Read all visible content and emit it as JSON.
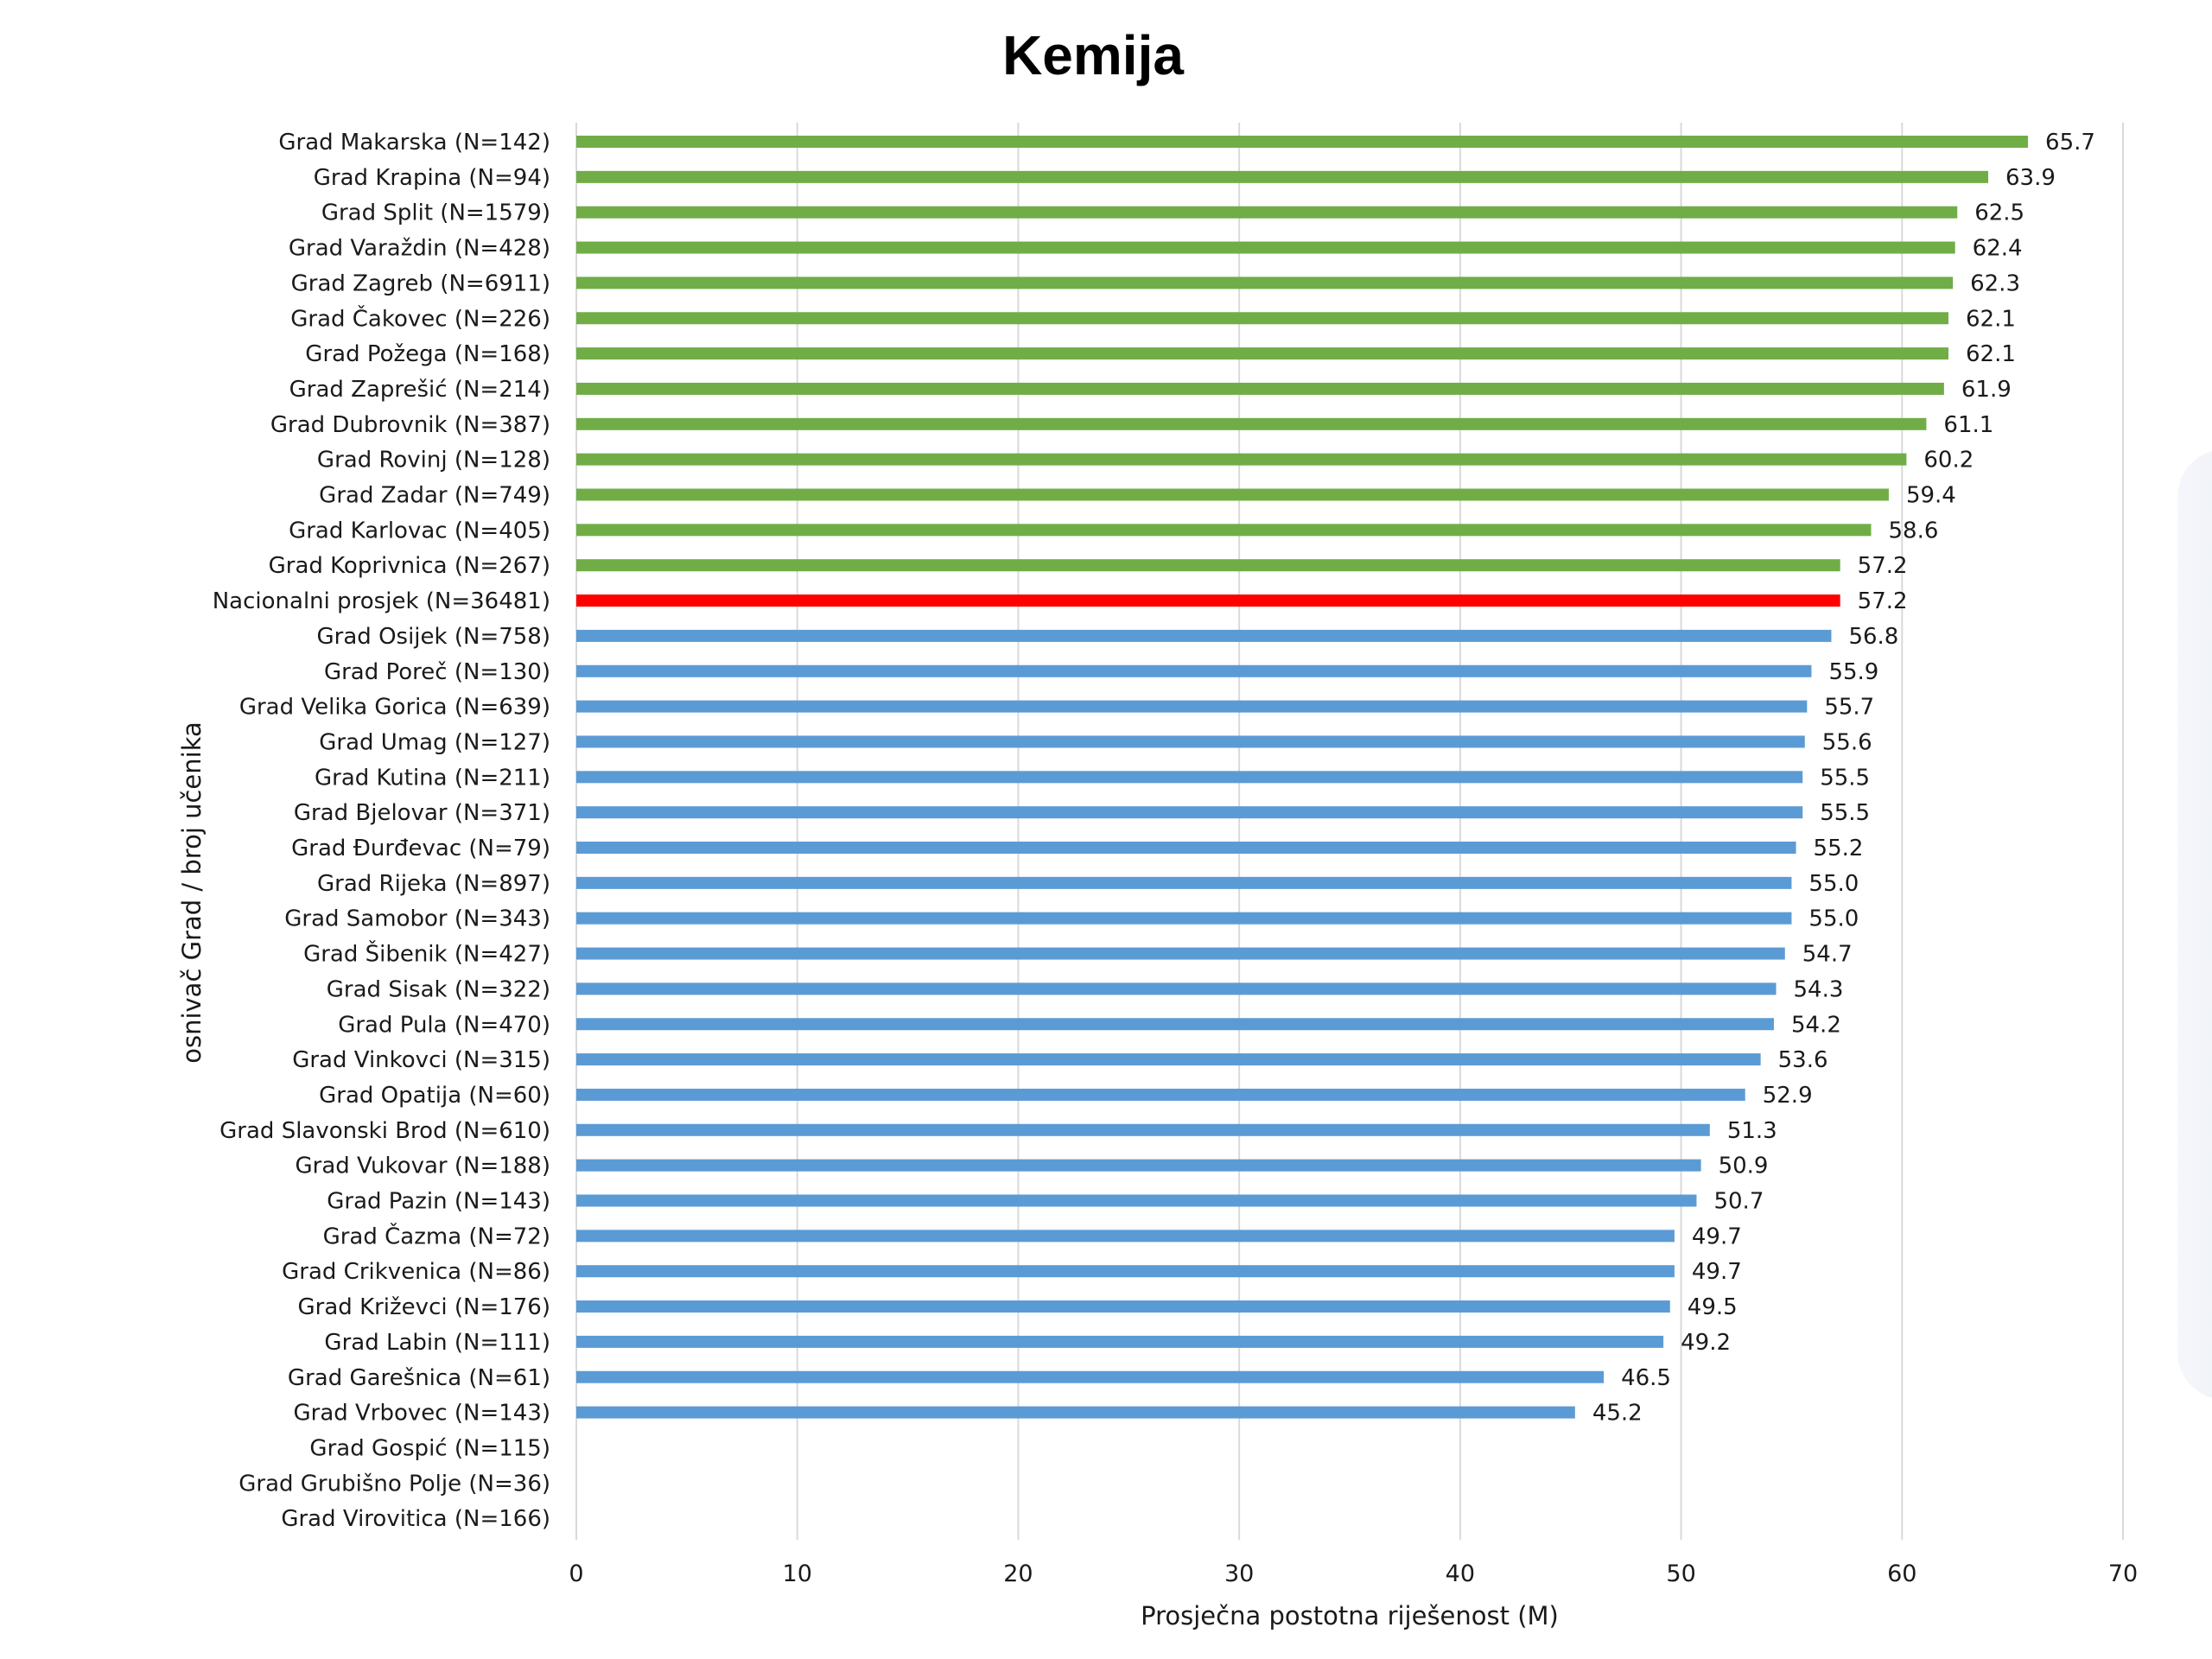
{
  "chart_data": {
    "type": "bar",
    "orientation": "horizontal",
    "title": "Kemija",
    "xlabel": "Prosječna postotna riješenost (M)",
    "ylabel": "osnivač Grad / broj učenika",
    "xlim": [
      0,
      70
    ],
    "xticks": [
      0,
      10,
      20,
      30,
      40,
      50,
      60,
      70
    ],
    "grid": "vertical",
    "colors": {
      "above": "#70ad47",
      "national": "#ff0000",
      "below": "#5b9bd5"
    },
    "categories": [
      "Grad Makarska (N=142)",
      "Grad Krapina (N=94)",
      "Grad Split (N=1579)",
      "Grad Varaždin (N=428)",
      "Grad Zagreb (N=6911)",
      "Grad Čakovec (N=226)",
      "Grad Požega (N=168)",
      "Grad Zaprešić (N=214)",
      "Grad Dubrovnik (N=387)",
      "Grad Rovinj (N=128)",
      "Grad Zadar (N=749)",
      "Grad Karlovac (N=405)",
      "Grad Koprivnica (N=267)",
      "Nacionalni prosjek (N=36481)",
      "Grad Osijek (N=758)",
      "Grad Poreč (N=130)",
      "Grad Velika Gorica (N=639)",
      "Grad Umag (N=127)",
      "Grad Kutina (N=211)",
      "Grad Bjelovar (N=371)",
      "Grad Đurđevac (N=79)",
      "Grad Rijeka (N=897)",
      "Grad Samobor (N=343)",
      "Grad Šibenik (N=427)",
      "Grad Sisak (N=322)",
      "Grad Pula (N=470)",
      "Grad Vinkovci (N=315)",
      "Grad Opatija (N=60)",
      "Grad Slavonski Brod (N=610)",
      "Grad Vukovar (N=188)",
      "Grad Pazin (N=143)",
      "Grad Čazma (N=72)",
      "Grad Crikvenica (N=86)",
      "Grad Križevci (N=176)",
      "Grad Labin (N=111)",
      "Grad Garešnica (N=61)",
      "Grad Vrbovec (N=143)",
      "Grad Gospić (N=115)",
      "Grad Grubišno Polje (N=36)",
      "Grad Virovitica (N=166)"
    ],
    "values": [
      65.7,
      63.9,
      62.5,
      62.4,
      62.3,
      62.1,
      62.1,
      61.9,
      61.1,
      60.2,
      59.4,
      58.6,
      57.2,
      57.2,
      56.8,
      55.9,
      55.7,
      55.6,
      55.5,
      55.5,
      55.2,
      55.0,
      55.0,
      54.7,
      54.3,
      54.2,
      53.6,
      52.9,
      51.3,
      50.9,
      50.7,
      49.7,
      49.7,
      49.5,
      49.2,
      46.5,
      45.2,
      null,
      null,
      null
    ],
    "value_labels": [
      "65.7",
      "63.9",
      "62.5",
      "62.4",
      "62.3",
      "62.1",
      "62.1",
      "61.9",
      "61.1",
      "60.2",
      "59.4",
      "58.6",
      "57.2",
      "57.2",
      "56.8",
      "55.9",
      "55.7",
      "55.6",
      "55.5",
      "55.5",
      "55.2",
      "55.0",
      "55.0",
      "54.7",
      "54.3",
      "54.2",
      "53.6",
      "52.9",
      "51.3",
      "50.9",
      "50.7",
      "49.7",
      "49.7",
      "49.5",
      "49.2",
      "46.5",
      "45.2",
      null,
      null,
      null
    ],
    "highlight_category": "Nacionalni prosjek (N=36481)"
  }
}
